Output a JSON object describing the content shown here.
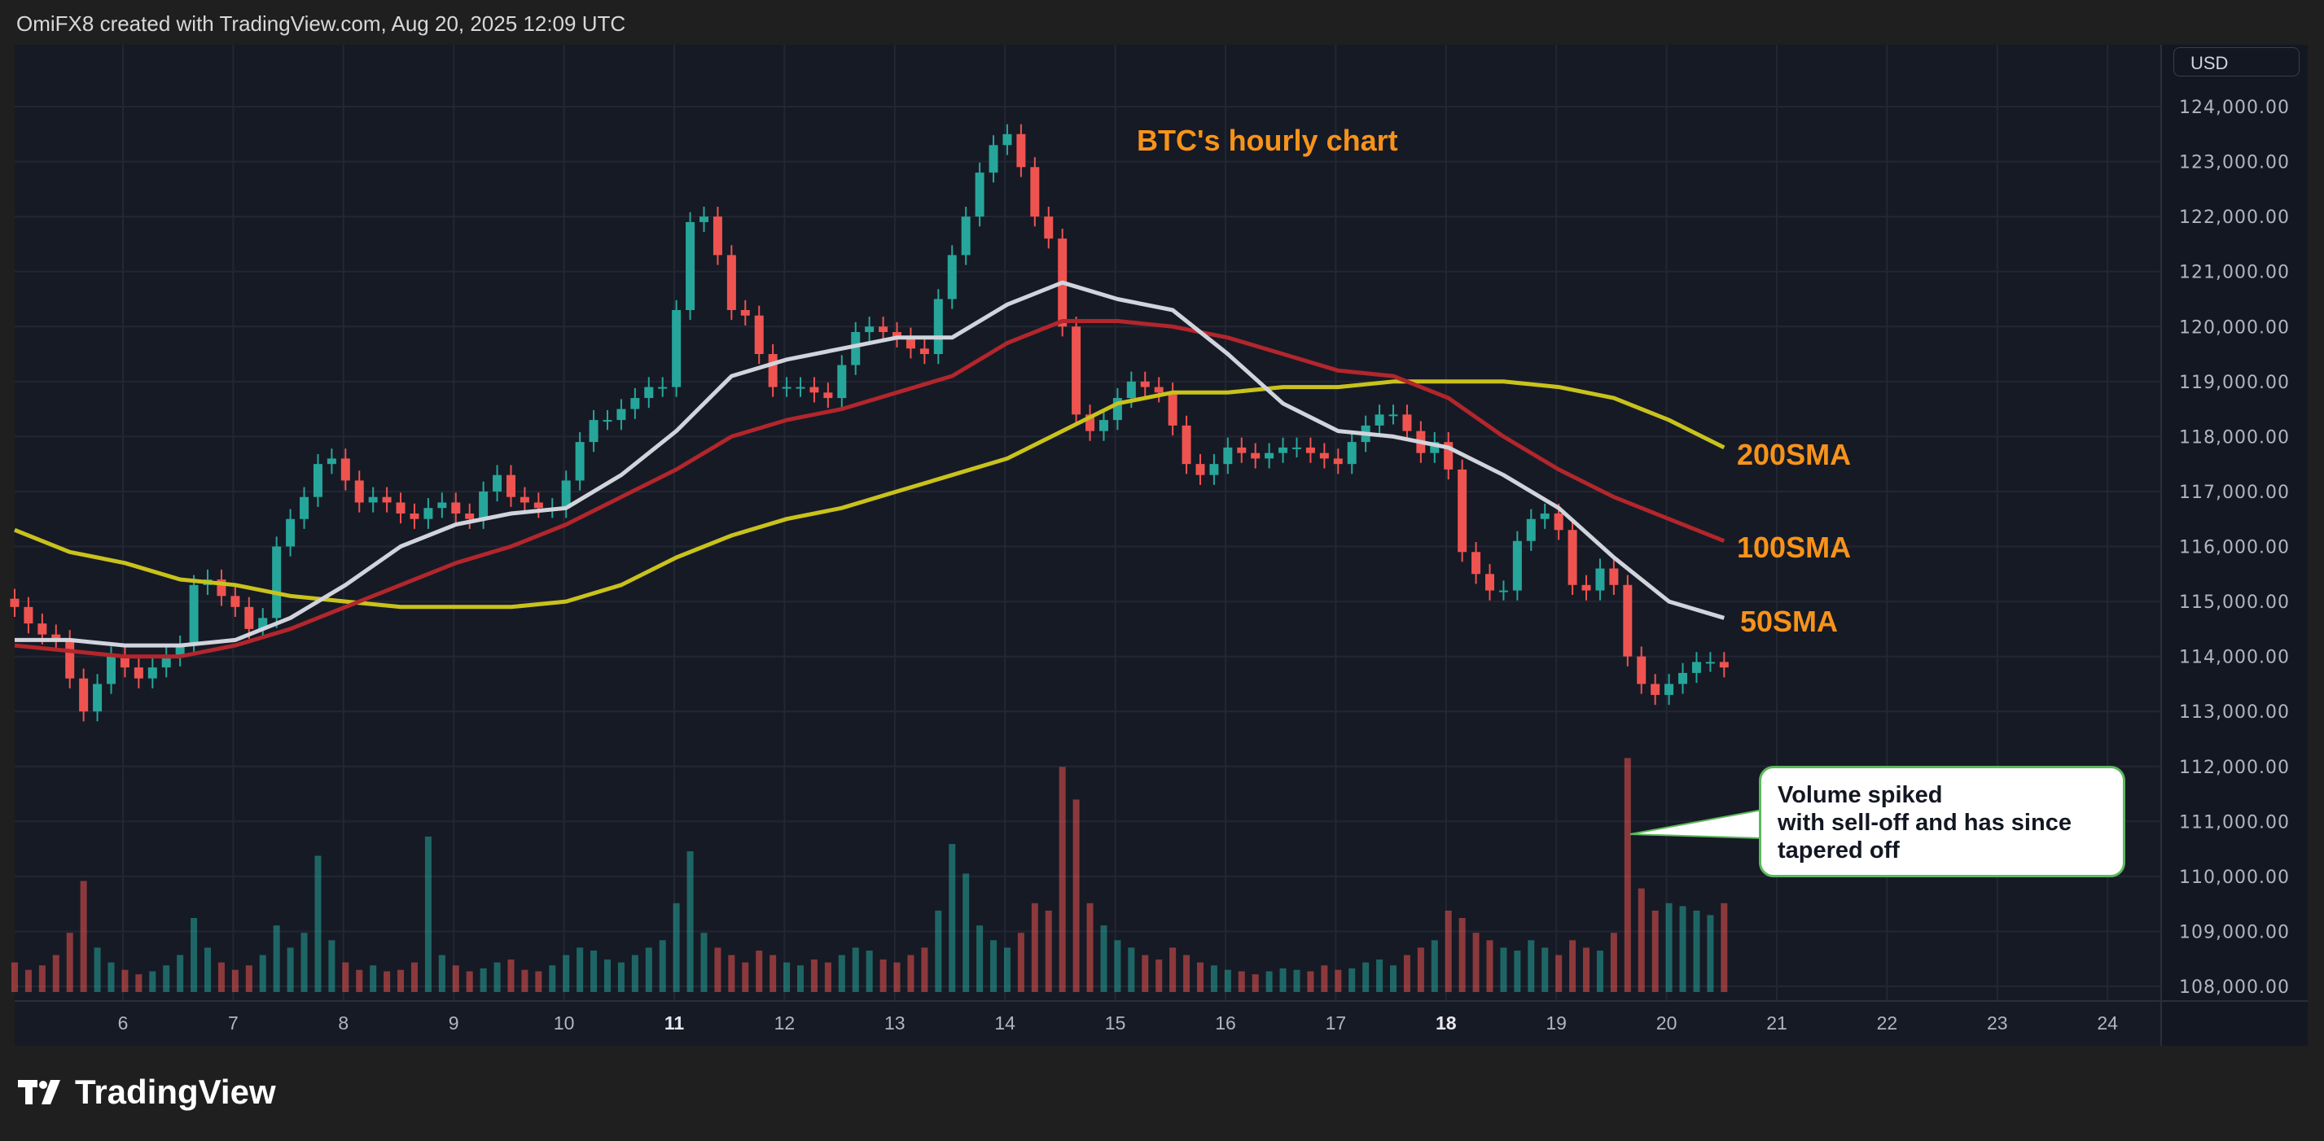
{
  "header": {
    "title": "OmiFX8 created with TradingView.com, Aug 20, 2025 12:09 UTC"
  },
  "price_axis": {
    "currency": "USD"
  },
  "branding": {
    "logo_text": "TradingView"
  },
  "annotations": {
    "chart_title": "BTC's hourly chart",
    "sma200_label": "200SMA",
    "sma100_label": "100SMA",
    "sma50_label": "50SMA",
    "callout": "Volume spiked\nwith sell-off and has since\ntapered off"
  },
  "colors": {
    "up": "#26a69a",
    "down": "#ef5350",
    "sma50": "#d1d4dc",
    "sma100": "#b2262c",
    "sma200": "#c9c21c",
    "annotation": "#f7931a",
    "callout_border": "#5cb85c",
    "background": "#161a25"
  },
  "chart_data": {
    "type": "candlestick",
    "symbol": "BTC",
    "start": "2025-08-05 00:00",
    "interval": "3h",
    "ylim": [
      108000,
      124000
    ],
    "grid": true,
    "y_ticks": [
      "124,000.00",
      "123,000.00",
      "122,000.00",
      "121,000.00",
      "120,000.00",
      "119,000.00",
      "118,000.00",
      "117,000.00",
      "116,000.00",
      "115,000.00",
      "114,000.00",
      "113,000.00",
      "112,000.00",
      "111,000.00",
      "110,000.00",
      "109,000.00",
      "108,000.00"
    ],
    "x_ticks": [
      {
        "label": "6",
        "bold": false
      },
      {
        "label": "7",
        "bold": false
      },
      {
        "label": "8",
        "bold": false
      },
      {
        "label": "9",
        "bold": false
      },
      {
        "label": "10",
        "bold": false
      },
      {
        "label": "11",
        "bold": true
      },
      {
        "label": "12",
        "bold": false
      },
      {
        "label": "13",
        "bold": false
      },
      {
        "label": "14",
        "bold": false
      },
      {
        "label": "15",
        "bold": false
      },
      {
        "label": "16",
        "bold": false
      },
      {
        "label": "17",
        "bold": false
      },
      {
        "label": "18",
        "bold": true
      },
      {
        "label": "19",
        "bold": false
      },
      {
        "label": "20",
        "bold": false
      },
      {
        "label": "21",
        "bold": false
      },
      {
        "label": "22",
        "bold": false
      },
      {
        "label": "23",
        "bold": false
      },
      {
        "label": "24",
        "bold": false
      }
    ],
    "close": [
      114900,
      114600,
      114400,
      114300,
      113600,
      113000,
      113500,
      114000,
      113800,
      113600,
      113800,
      114000,
      114200,
      115300,
      115400,
      115100,
      114900,
      114500,
      114700,
      116000,
      116500,
      116900,
      117500,
      117600,
      117200,
      116800,
      116900,
      116800,
      116600,
      116500,
      116700,
      116800,
      116600,
      116500,
      117000,
      117300,
      116900,
      116800,
      116700,
      116700,
      117200,
      117900,
      118300,
      118300,
      118500,
      118700,
      118900,
      118900,
      120300,
      121900,
      122000,
      121300,
      120300,
      120200,
      119500,
      118900,
      118900,
      118900,
      118800,
      118700,
      119300,
      119900,
      120000,
      119900,
      119800,
      119600,
      119500,
      120500,
      121300,
      122000,
      122800,
      123300,
      123500,
      122900,
      122000,
      121600,
      120000,
      118400,
      118100,
      118300,
      118700,
      119000,
      118900,
      118800,
      118200,
      117500,
      117300,
      117500,
      117800,
      117700,
      117600,
      117700,
      117800,
      117800,
      117700,
      117600,
      117500,
      117900,
      118200,
      118400,
      118400,
      118100,
      117700,
      117900,
      117400,
      115900,
      115500,
      115200,
      115200,
      116100,
      116500,
      116600,
      116300,
      115300,
      115200,
      115600,
      115300,
      114000,
      113500,
      113300,
      113500,
      113700,
      113900,
      113900,
      113800
    ],
    "volume_relative": [
      20,
      15,
      18,
      25,
      40,
      75,
      30,
      20,
      15,
      12,
      14,
      18,
      25,
      50,
      30,
      20,
      15,
      18,
      25,
      45,
      30,
      40,
      92,
      35,
      20,
      15,
      18,
      14,
      15,
      20,
      105,
      25,
      18,
      14,
      16,
      20,
      22,
      15,
      14,
      18,
      25,
      30,
      28,
      22,
      20,
      25,
      30,
      35,
      60,
      95,
      40,
      30,
      25,
      20,
      28,
      25,
      20,
      18,
      22,
      20,
      25,
      30,
      28,
      22,
      20,
      25,
      30,
      55,
      100,
      80,
      45,
      35,
      30,
      40,
      60,
      55,
      152,
      130,
      60,
      45,
      35,
      30,
      25,
      22,
      30,
      25,
      20,
      18,
      15,
      14,
      12,
      14,
      16,
      15,
      14,
      18,
      15,
      16,
      20,
      22,
      18,
      25,
      30,
      35,
      55,
      50,
      40,
      35,
      30,
      28,
      35,
      30,
      25,
      35,
      30,
      28,
      40,
      158,
      70,
      55,
      60,
      58,
      55,
      52,
      60
    ],
    "series": [
      {
        "name": "50SMA",
        "interval": "12h",
        "values": [
          114300,
          114300,
          114200,
          114200,
          114300,
          114700,
          115300,
          116000,
          116400,
          116600,
          116700,
          117300,
          118100,
          119100,
          119400,
          119600,
          119800,
          119800,
          120400,
          120800,
          120500,
          120300,
          119500,
          118600,
          118100,
          118000,
          117800,
          117300,
          116700,
          115800,
          115000,
          114700
        ]
      },
      {
        "name": "100SMA",
        "interval": "12h",
        "values": [
          114200,
          114100,
          114000,
          114000,
          114200,
          114500,
          114900,
          115300,
          115700,
          116000,
          116400,
          116900,
          117400,
          118000,
          118300,
          118500,
          118800,
          119100,
          119700,
          120100,
          120100,
          120000,
          119800,
          119500,
          119200,
          119100,
          118700,
          118000,
          117400,
          116900,
          116500,
          116100
        ]
      },
      {
        "name": "200SMA",
        "interval": "12h",
        "values": [
          116300,
          115900,
          115700,
          115400,
          115300,
          115100,
          115000,
          114900,
          114900,
          114900,
          115000,
          115300,
          115800,
          116200,
          116500,
          116700,
          117000,
          117300,
          117600,
          118100,
          118600,
          118800,
          118800,
          118900,
          118900,
          119000,
          119000,
          119000,
          118900,
          118700,
          118300,
          117800
        ]
      }
    ]
  }
}
